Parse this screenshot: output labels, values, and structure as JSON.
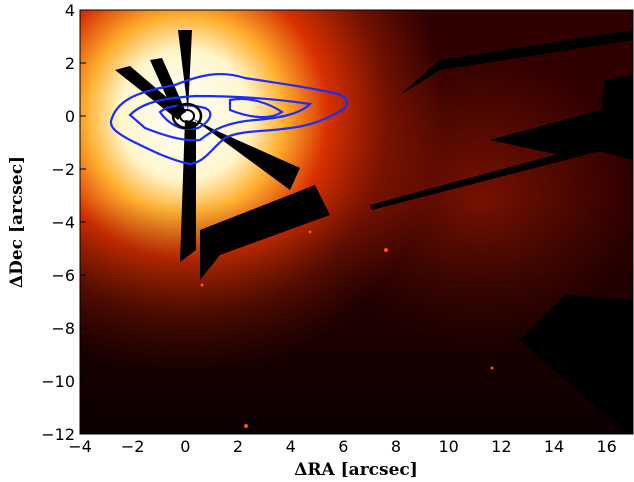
{
  "chart_data": {
    "type": "heatmap",
    "title": "",
    "xlabel": "ΔRA [arcsec]",
    "ylabel": "ΔDec [arcsec]",
    "xlim": [
      -4,
      17
    ],
    "ylim": [
      -12,
      4
    ],
    "x_ticks": [
      -4,
      -2,
      0,
      2,
      4,
      6,
      8,
      10,
      12,
      14,
      16
    ],
    "y_ticks": [
      4,
      2,
      0,
      -2,
      -4,
      -6,
      -8,
      -10,
      -12
    ],
    "colormap": "black-red-orange-yellow-white",
    "contour_color": "#1a2cff",
    "grid": false,
    "legend": "none"
  }
}
